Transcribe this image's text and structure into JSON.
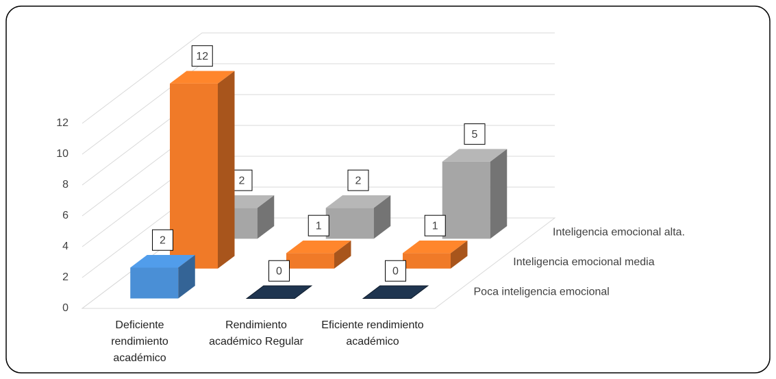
{
  "chart_data": {
    "type": "bar3d",
    "categories": [
      "Deficiente rendimiento académico",
      "Rendimiento académico Regular",
      "Eficiente rendimiento académico"
    ],
    "series": [
      {
        "name": "Poca inteligencia emocional",
        "color": "#4a8fd6",
        "values": [
          2,
          0,
          0
        ]
      },
      {
        "name": "Inteligencia emocional media",
        "color": "#f07a28",
        "values": [
          12,
          1,
          1
        ]
      },
      {
        "name": "Inteligencia emocional alta.",
        "color": "#a6a6a6",
        "values": [
          2,
          2,
          5
        ]
      }
    ],
    "ylim": [
      0,
      12
    ],
    "yticks": [
      0,
      2,
      4,
      6,
      8,
      10,
      12
    ],
    "grid": true
  }
}
